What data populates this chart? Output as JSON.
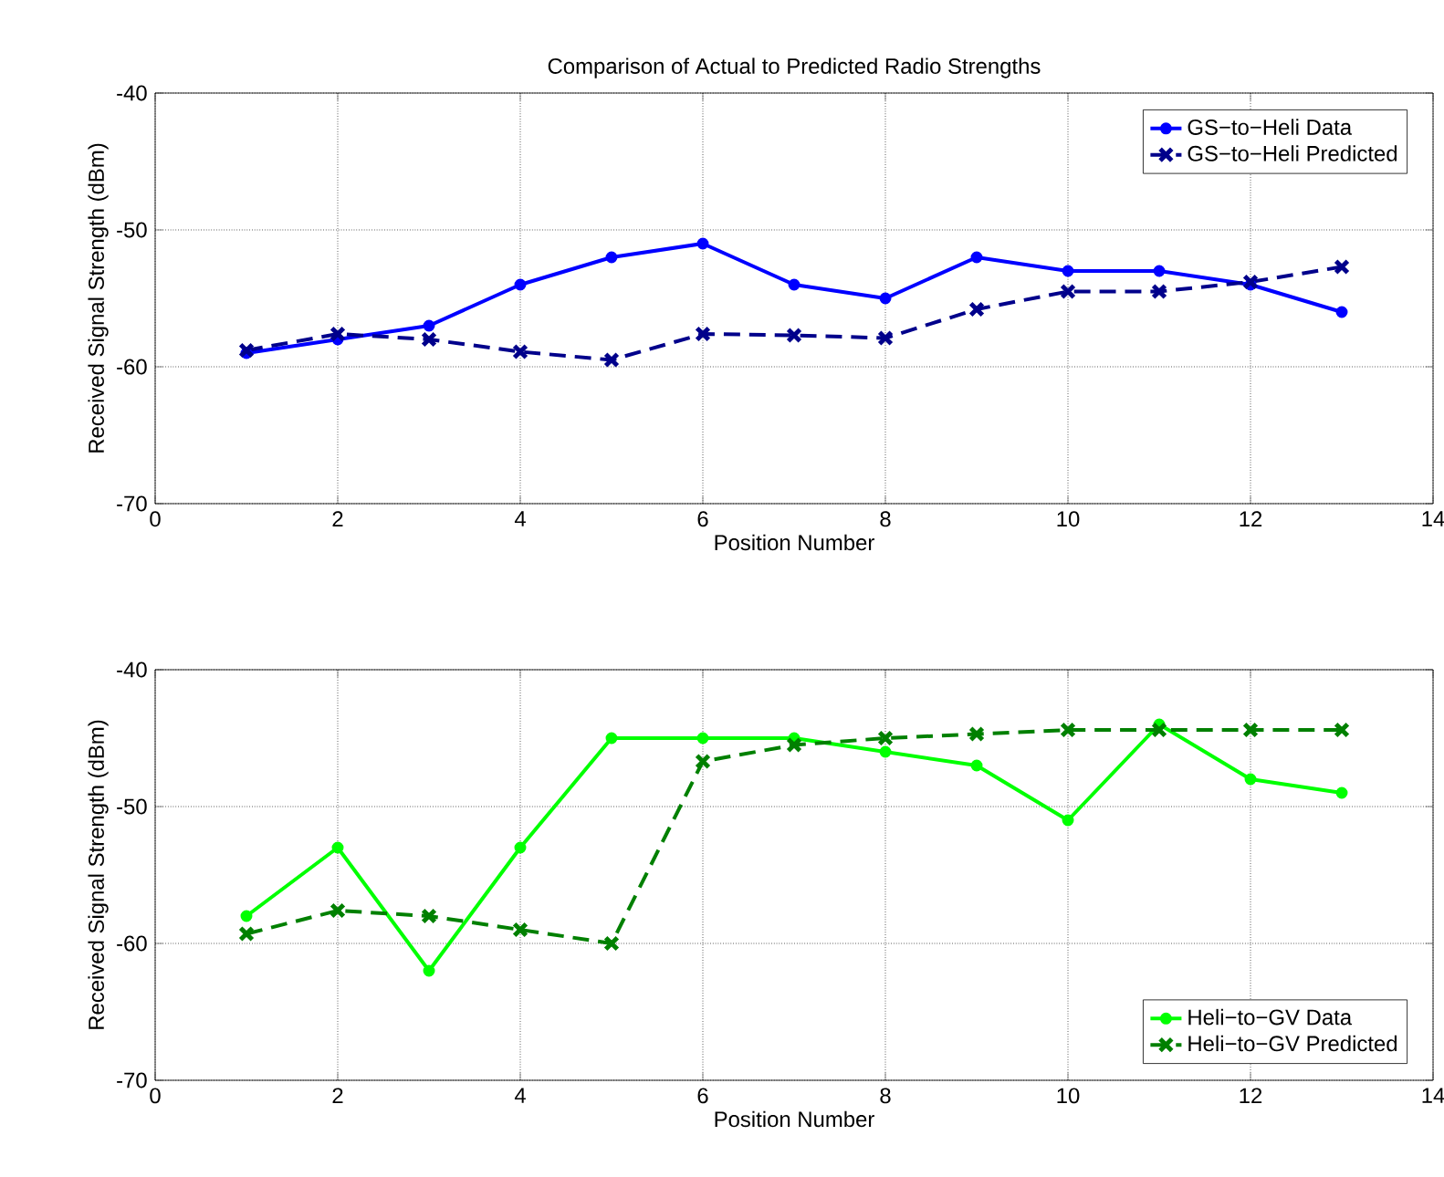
{
  "chart_data": [
    {
      "type": "line",
      "title": "Comparison of Actual to Predicted Radio Strengths",
      "xlabel": "Position Number",
      "ylabel": "Received Signal Strength (dBm)",
      "x": [
        1,
        2,
        3,
        4,
        5,
        6,
        7,
        8,
        9,
        10,
        11,
        12,
        13
      ],
      "series": [
        {
          "name": "GS−to−Heli Data",
          "color": "#0000ff",
          "marker": "circle",
          "line_style": "solid",
          "values": [
            -59,
            -58,
            -57,
            -54,
            -52,
            -51,
            -54,
            -55,
            -52,
            -53,
            -53,
            -54,
            -56
          ]
        },
        {
          "name": "GS−to−Heli Predicted",
          "color": "#00008b",
          "marker": "cross",
          "line_style": "dashed",
          "values": [
            -58.8,
            -57.6,
            -58,
            -58.9,
            -59.5,
            -57.6,
            -57.7,
            -57.9,
            -55.8,
            -54.5,
            -54.5,
            -53.8,
            -52.7
          ]
        }
      ],
      "xlim": [
        0,
        14
      ],
      "ylim": [
        -70,
        -40
      ],
      "xticks": [
        0,
        2,
        4,
        6,
        8,
        10,
        12,
        14
      ],
      "yticks": [
        -70,
        -60,
        -50,
        -40
      ],
      "grid": true,
      "legend": "top right"
    },
    {
      "type": "line",
      "xlabel": "Position Number",
      "ylabel": "Received Signal Strength (dBm)",
      "x": [
        1,
        2,
        3,
        4,
        5,
        6,
        7,
        8,
        9,
        10,
        11,
        12,
        13
      ],
      "series": [
        {
          "name": "Heli−to−GV Data",
          "color": "#00ff00",
          "marker": "circle",
          "line_style": "solid",
          "values": [
            -58,
            -53,
            -62,
            -53,
            -45,
            -45,
            -45,
            -46,
            -47,
            -51,
            -44,
            -48,
            -49
          ]
        },
        {
          "name": "Heli−to−GV Predicted",
          "color": "#008000",
          "marker": "cross",
          "line_style": "dashed",
          "values": [
            -59.3,
            -57.6,
            -58,
            -59,
            -60,
            -46.7,
            -45.5,
            -45,
            -44.7,
            -44.4,
            -44.4,
            -44.4,
            -44.4
          ]
        }
      ],
      "xlim": [
        0,
        14
      ],
      "ylim": [
        -70,
        -40
      ],
      "xticks": [
        0,
        2,
        4,
        6,
        8,
        10,
        12,
        14
      ],
      "yticks": [
        -70,
        -60,
        -50,
        -40
      ],
      "grid": true,
      "legend": "bottom right"
    }
  ]
}
